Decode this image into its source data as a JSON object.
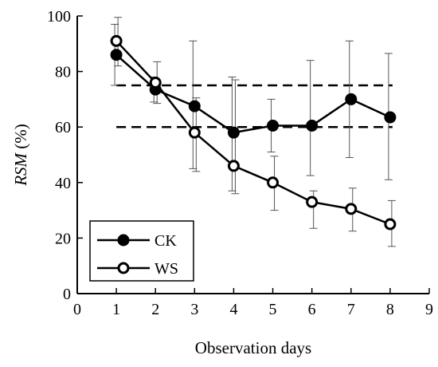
{
  "chart_data": {
    "type": "line",
    "xlabel": "Observation days",
    "ylabel_italic": "RSM",
    "ylabel_unit": " (%)",
    "xlim": [
      0,
      9
    ],
    "ylim": [
      0,
      100
    ],
    "x_ticks": [
      0,
      1,
      2,
      3,
      4,
      5,
      6,
      7,
      8,
      9
    ],
    "y_ticks": [
      0,
      20,
      40,
      60,
      80,
      100
    ],
    "x": [
      1,
      2,
      3,
      4,
      5,
      6,
      7,
      8
    ],
    "series": [
      {
        "name": "CK",
        "marker": "filled-circle",
        "values": [
          86,
          73.5,
          67.5,
          58,
          60.5,
          60.5,
          70,
          63.5
        ],
        "err_upper": [
          97,
          78,
          91,
          78,
          70,
          84,
          91,
          86.5
        ],
        "err_lower": [
          75,
          69,
          45,
          37,
          51,
          42.5,
          49,
          41
        ]
      },
      {
        "name": "WS",
        "marker": "open-circle",
        "values": [
          91,
          76,
          58,
          46,
          40,
          33,
          30.5,
          25
        ],
        "err_upper": [
          99.5,
          83.5,
          70.5,
          77,
          49.5,
          37,
          38,
          33.5
        ],
        "err_lower": [
          82,
          68.5,
          44,
          36,
          30,
          23.5,
          22.5,
          17
        ]
      }
    ],
    "reference_lines": [
      75,
      60
    ],
    "legend_placement": "bottom-left"
  }
}
